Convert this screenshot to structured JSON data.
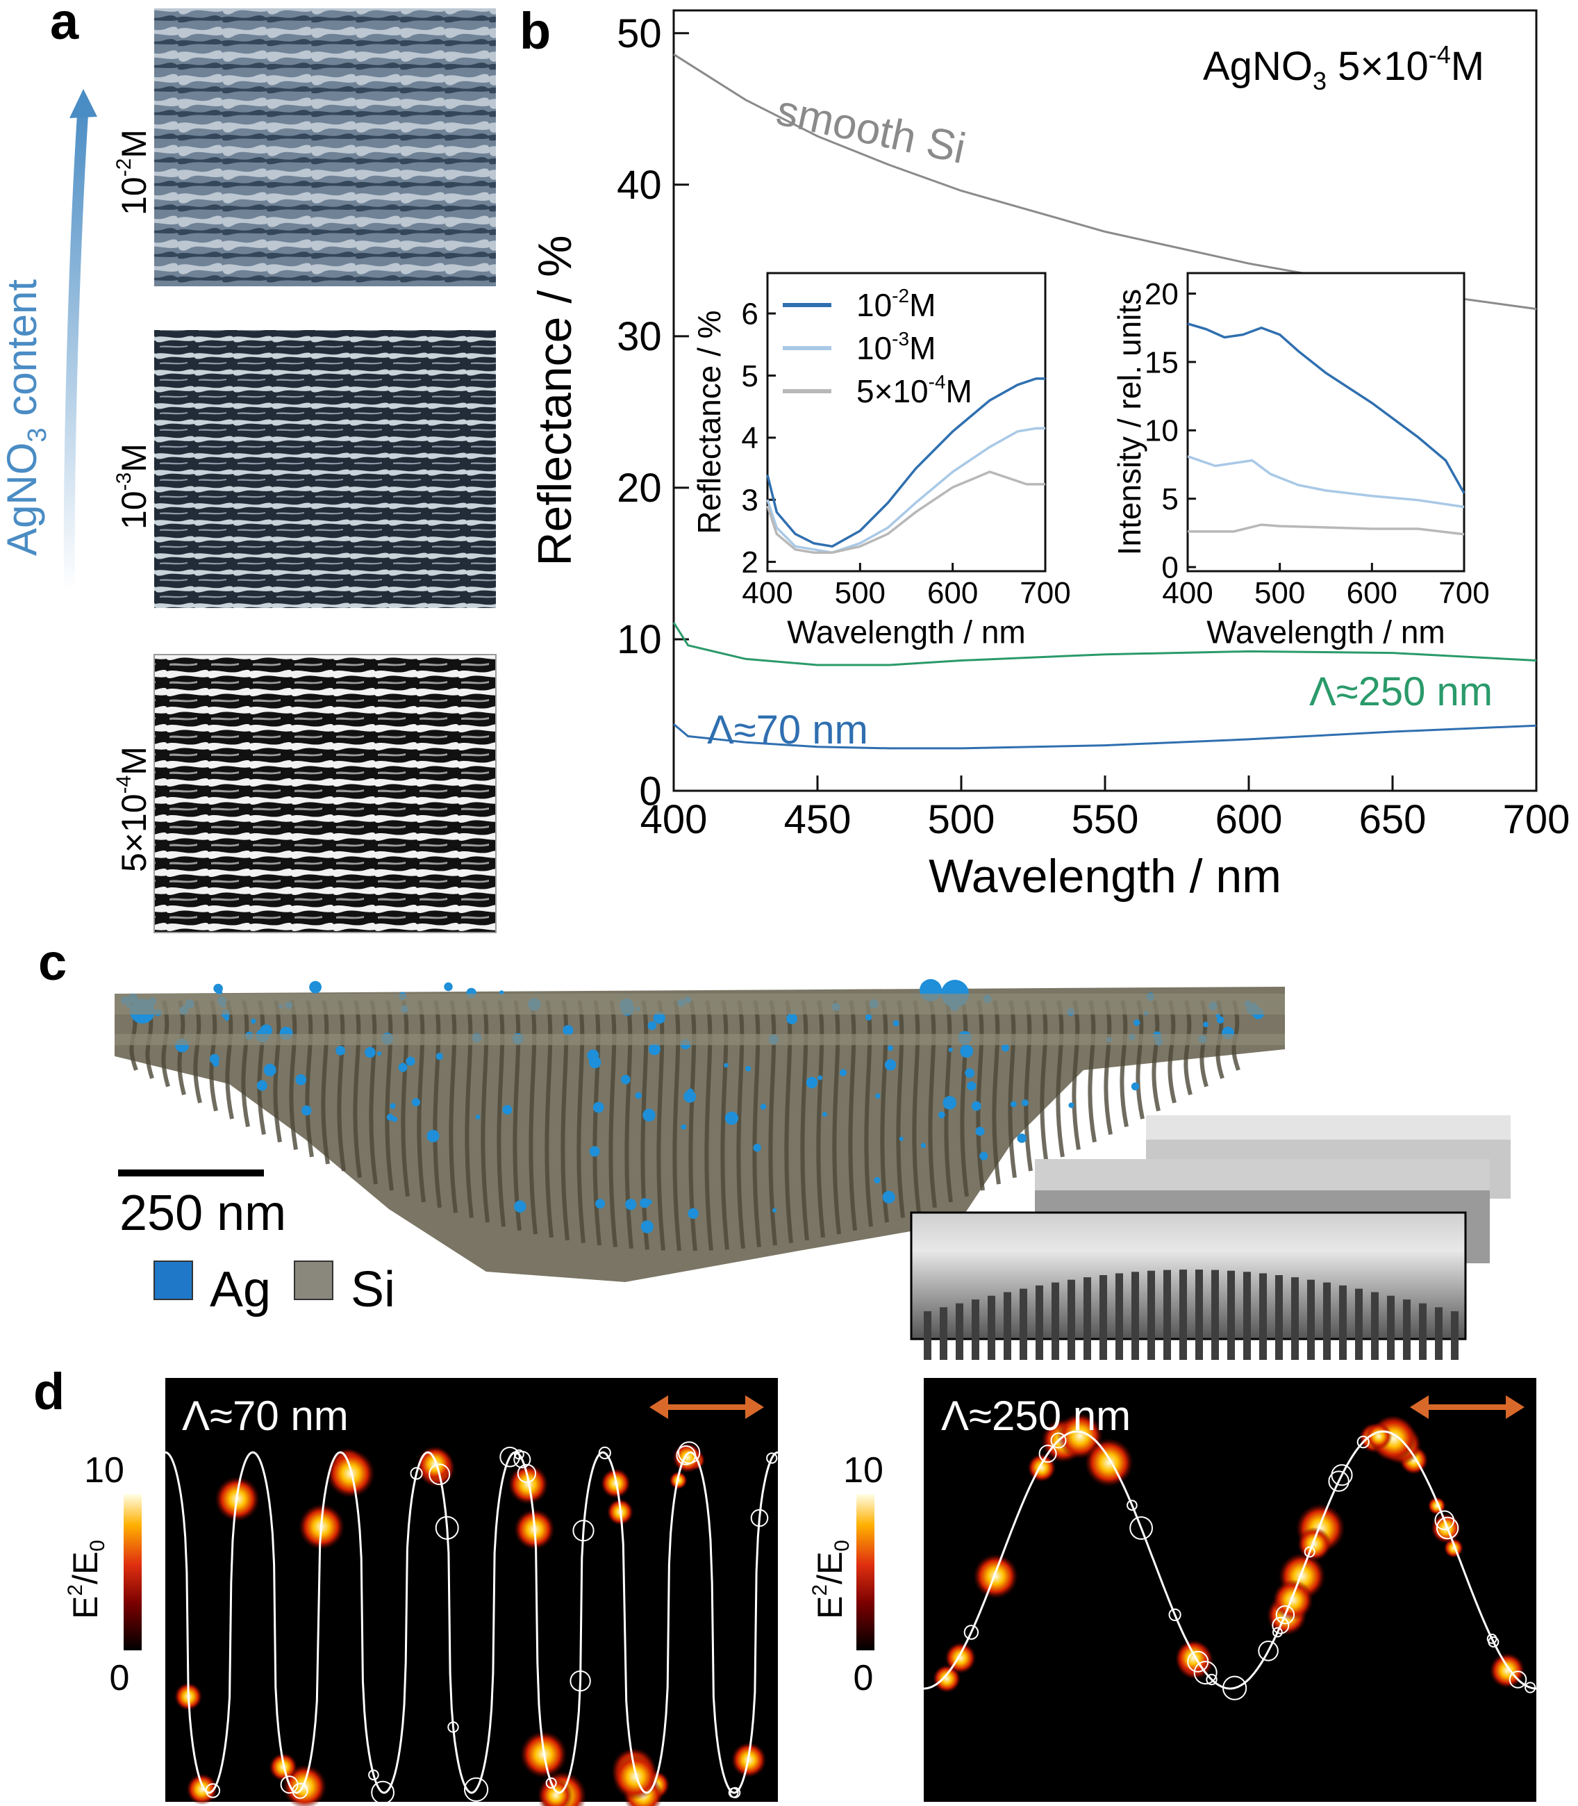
{
  "panels": {
    "a": "a",
    "b": "b",
    "c": "c",
    "d": "d"
  },
  "panel_a": {
    "arrow_label_prefix": "AgNO",
    "arrow_label_sub": "3",
    "arrow_label_suffix": " content",
    "images": [
      {
        "base": "10",
        "exp": "-2",
        "unit": "M"
      },
      {
        "base": "10",
        "exp": "-3",
        "unit": "M"
      },
      {
        "base": "5×10",
        "exp": "-4",
        "unit": "M"
      }
    ]
  },
  "panel_b": {
    "annotation_prefix": "AgNO",
    "annotation_sub": "3",
    "annotation_mid": " 5×10",
    "annotation_exp": "-4",
    "annotation_unit": "M",
    "curve_labels": {
      "smooth": "smooth Si",
      "lambda250": "Λ≈250 nm",
      "lambda70": "Λ≈70 nm"
    }
  },
  "chart_data": [
    {
      "type": "line",
      "id": "main-reflectance",
      "xlabel": "Wavelength / nm",
      "ylabel": "Reflectance / %",
      "xlim": [
        400,
        700
      ],
      "ylim": [
        0,
        51.5
      ],
      "xticks": [
        400,
        450,
        500,
        550,
        600,
        650,
        700
      ],
      "yticks": [
        0,
        10,
        20,
        30,
        40,
        50
      ],
      "series": [
        {
          "name": "smooth Si",
          "color": "#8a8a8a",
          "x": [
            400,
            425,
            450,
            475,
            500,
            550,
            600,
            650,
            700
          ],
          "y": [
            48.6,
            45.6,
            43.2,
            41.3,
            39.6,
            36.9,
            34.8,
            33.1,
            31.8
          ]
        },
        {
          "name": "Λ≈250 nm",
          "color": "#2a9a6a",
          "x": [
            400,
            405,
            425,
            450,
            475,
            500,
            550,
            600,
            650,
            700
          ],
          "y": [
            11.1,
            9.6,
            8.7,
            8.3,
            8.3,
            8.6,
            9.0,
            9.2,
            9.1,
            8.6
          ]
        },
        {
          "name": "Λ≈70 nm",
          "color": "#2f6fb0",
          "x": [
            400,
            405,
            425,
            450,
            475,
            500,
            550,
            600,
            650,
            700
          ],
          "y": [
            4.4,
            3.6,
            3.2,
            2.9,
            2.8,
            2.8,
            3.0,
            3.4,
            3.9,
            4.3
          ]
        }
      ]
    },
    {
      "type": "line",
      "id": "inset-reflectance",
      "xlabel": "Wavelength / nm",
      "ylabel": "Reflectance / %",
      "xlim": [
        400,
        700
      ],
      "ylim": [
        1.85,
        6.65
      ],
      "xticks": [
        400,
        500,
        600,
        700
      ],
      "yticks": [
        2,
        3,
        4,
        5,
        6
      ],
      "legend": [
        {
          "base": "10",
          "exp": "-2",
          "unit": "M"
        },
        {
          "base": "10",
          "exp": "-3",
          "unit": "M"
        },
        {
          "base": "5×10",
          "exp": "-4",
          "unit": "M"
        }
      ],
      "series": [
        {
          "name": "10-2 M",
          "color": "#2f6fb0",
          "x": [
            400,
            410,
            430,
            450,
            470,
            500,
            530,
            560,
            600,
            640,
            670,
            690,
            700
          ],
          "y": [
            3.4,
            2.8,
            2.45,
            2.3,
            2.25,
            2.5,
            2.95,
            3.5,
            4.1,
            4.6,
            4.85,
            4.95,
            4.95
          ]
        },
        {
          "name": "10-3 M",
          "color": "#a9c9e6",
          "x": [
            400,
            410,
            430,
            450,
            470,
            500,
            530,
            560,
            600,
            640,
            670,
            690,
            700
          ],
          "y": [
            3.0,
            2.55,
            2.25,
            2.2,
            2.15,
            2.3,
            2.55,
            2.95,
            3.45,
            3.85,
            4.1,
            4.15,
            4.15
          ]
        },
        {
          "name": "5×10-4 M",
          "color": "#b8b8b8",
          "x": [
            400,
            410,
            430,
            450,
            470,
            500,
            530,
            560,
            600,
            640,
            660,
            680,
            700
          ],
          "y": [
            2.9,
            2.45,
            2.2,
            2.15,
            2.15,
            2.25,
            2.45,
            2.8,
            3.2,
            3.45,
            3.35,
            3.25,
            3.25
          ]
        }
      ]
    },
    {
      "type": "line",
      "id": "inset-intensity",
      "xlabel": "Wavelength / nm",
      "ylabel": "Intensity / rel. units",
      "xlim": [
        400,
        700
      ],
      "ylim": [
        -0.3,
        21.5
      ],
      "xticks": [
        400,
        500,
        600,
        700
      ],
      "yticks": [
        0,
        5,
        10,
        15,
        20
      ],
      "series": [
        {
          "name": "10-2 M",
          "color": "#2f6fb0",
          "x": [
            400,
            420,
            440,
            460,
            480,
            500,
            520,
            550,
            600,
            650,
            680,
            700
          ],
          "y": [
            17.8,
            17.4,
            16.8,
            17.0,
            17.5,
            17.0,
            15.8,
            14.2,
            12.0,
            9.5,
            7.8,
            5.4
          ]
        },
        {
          "name": "10-3 M",
          "color": "#a9c9e6",
          "x": [
            400,
            430,
            450,
            470,
            490,
            520,
            550,
            600,
            650,
            700
          ],
          "y": [
            8.1,
            7.4,
            7.6,
            7.8,
            6.8,
            6.0,
            5.6,
            5.2,
            4.9,
            4.4
          ]
        },
        {
          "name": "5×10-4 M",
          "color": "#b8b8b8",
          "x": [
            400,
            450,
            480,
            500,
            550,
            600,
            650,
            700
          ],
          "y": [
            2.6,
            2.6,
            3.1,
            3.0,
            2.9,
            2.8,
            2.8,
            2.4
          ]
        }
      ]
    }
  ],
  "panel_c": {
    "scalebar_label": "250 nm",
    "legend": [
      {
        "name": "Ag",
        "color": "#1f78c8"
      },
      {
        "name": "Si",
        "color": "#8a877c"
      }
    ]
  },
  "panel_d": {
    "maps": [
      {
        "title": "Λ≈70 nm",
        "scale_max": "10",
        "scale_min": "0"
      },
      {
        "title": "Λ≈250 nm",
        "scale_max": "10",
        "scale_min": "0"
      }
    ],
    "colorbar_label_a": "E",
    "colorbar_label_exp": "2",
    "colorbar_label_b": "/E",
    "colorbar_label_sub": "0",
    "polarization_color": "#d9692a"
  }
}
